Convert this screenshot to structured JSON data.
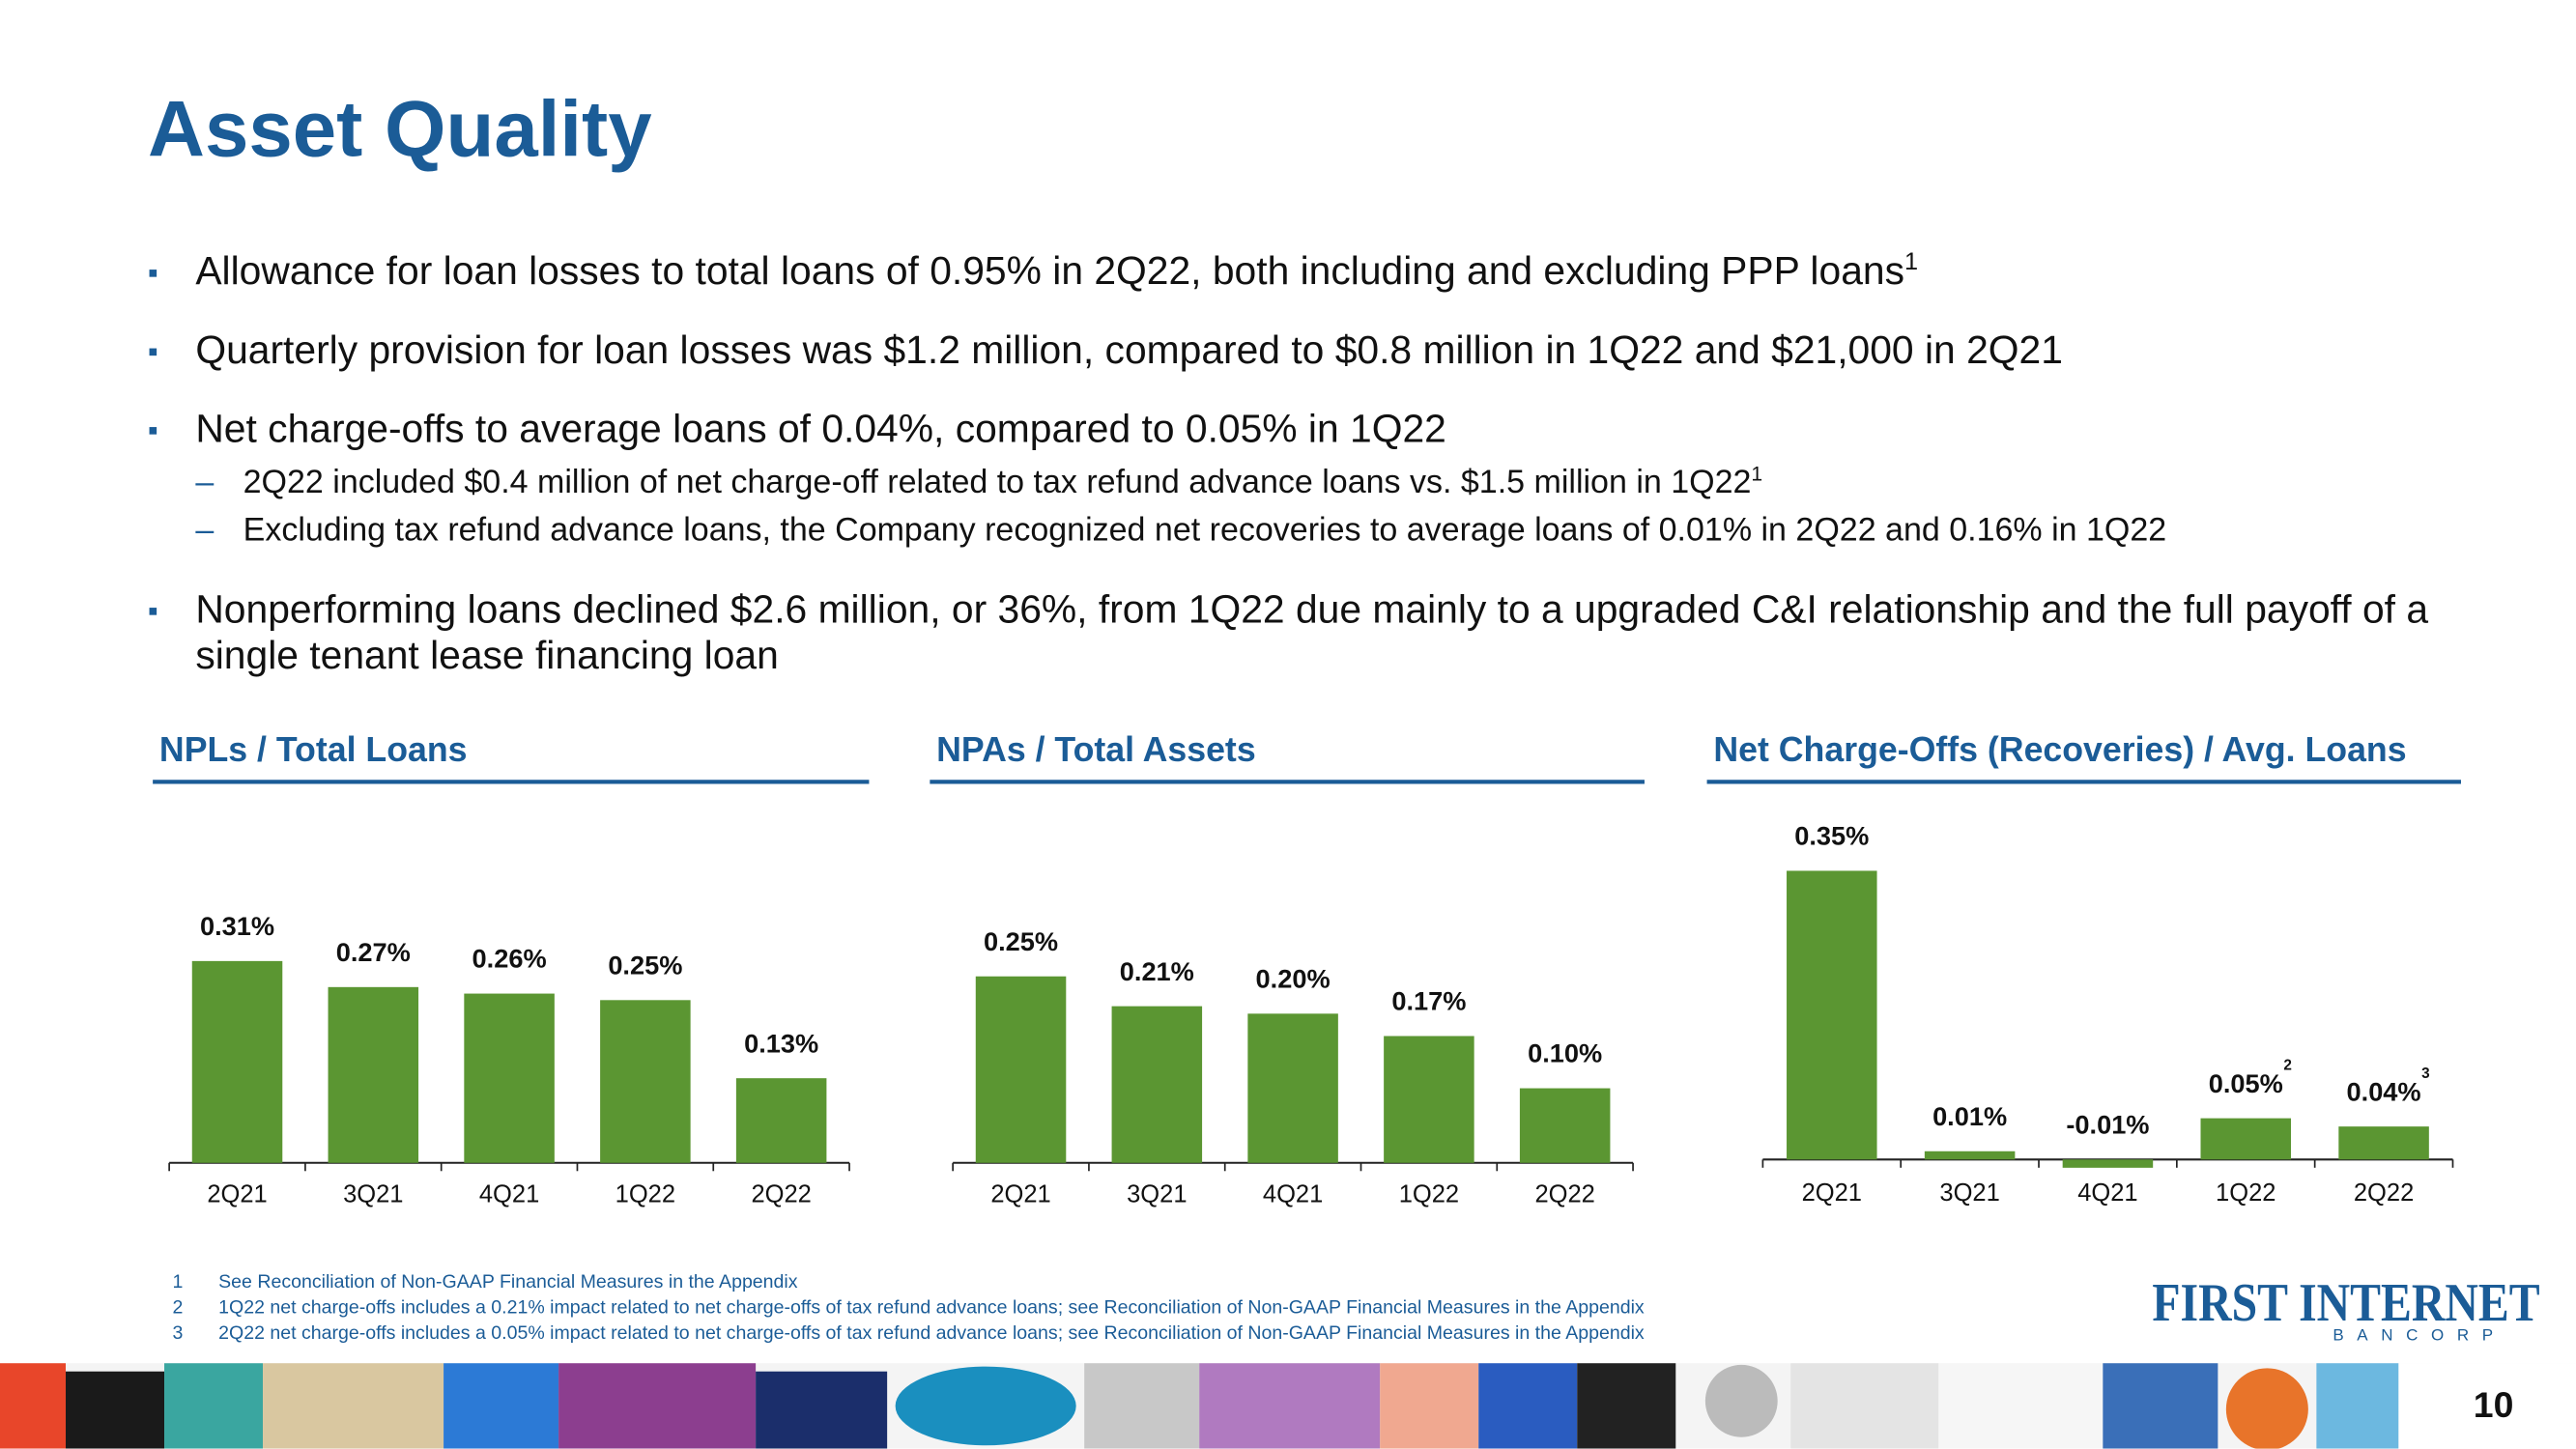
{
  "title": "Asset Quality",
  "bullets": [
    {
      "text": "Allowance for loan losses to total loans of 0.95% in 2Q22, both including and excluding PPP loans",
      "note": "1"
    },
    {
      "text": "Quarterly provision for loan losses was $1.2 million, compared to $0.8 million in 1Q22 and $21,000 in 2Q21"
    },
    {
      "text": "Net charge-offs to average loans of 0.04%, compared to 0.05% in 1Q22",
      "sub": [
        {
          "text": "2Q22 included $0.4 million of net charge-off related to tax refund advance loans vs. $1.5 million in 1Q22",
          "note": "1"
        },
        {
          "text": "Excluding tax refund advance loans, the Company recognized net recoveries to average loans of 0.01% in 2Q22 and 0.16% in 1Q22"
        }
      ]
    },
    {
      "text": "Nonperforming loans declined $2.6 million, or 36%, from 1Q22 due mainly to a upgraded C&I relationship and the full payoff of a single tenant lease financing loan"
    }
  ],
  "chart_data": [
    {
      "type": "bar",
      "title": "NPLs / Total Loans",
      "categories": [
        "2Q21",
        "3Q21",
        "4Q21",
        "1Q22",
        "2Q22"
      ],
      "values": [
        0.31,
        0.27,
        0.26,
        0.25,
        0.13
      ],
      "value_labels": [
        "0.31%",
        "0.27%",
        "0.26%",
        "0.25%",
        "0.13%"
      ],
      "color": "#5b9632",
      "ylim": [
        0,
        0.55
      ]
    },
    {
      "type": "bar",
      "title": "NPAs / Total Assets",
      "categories": [
        "2Q21",
        "3Q21",
        "4Q21",
        "1Q22",
        "2Q22"
      ],
      "values": [
        0.25,
        0.21,
        0.2,
        0.17,
        0.1
      ],
      "value_labels": [
        "0.25%",
        "0.21%",
        "0.20%",
        "0.17%",
        "0.10%"
      ],
      "color": "#5b9632",
      "ylim": [
        0,
        0.48
      ]
    },
    {
      "type": "bar",
      "title": "Net Charge-Offs (Recoveries) / Avg. Loans",
      "categories": [
        "2Q21",
        "3Q21",
        "4Q21",
        "1Q22",
        "2Q22"
      ],
      "values": [
        0.35,
        0.01,
        -0.01,
        0.05,
        0.04
      ],
      "value_labels": [
        "0.35%",
        "0.01%",
        "-0.01%",
        "0.05%",
        "0.04%"
      ],
      "value_notes": [
        null,
        null,
        null,
        "2",
        "3"
      ],
      "color": "#5b9632",
      "ylim": [
        -0.02,
        0.43
      ]
    }
  ],
  "footnotes": [
    {
      "number": "1",
      "text": "See Reconciliation of Non-GAAP Financial Measures in the Appendix"
    },
    {
      "number": "2",
      "text": "1Q22 net charge-offs includes a 0.21% impact related to net charge-offs of tax refund advance loans; see Reconciliation of Non-GAAP Financial Measures in the Appendix"
    },
    {
      "number": "3",
      "text": "2Q22 net charge-offs includes a 0.05% impact related to net charge-offs of tax refund advance loans; see Reconciliation of Non-GAAP Financial Measures in the Appendix"
    }
  ],
  "logo": {
    "name": "FIRST INTERNET",
    "sub": "BANCORP"
  },
  "page_number": "10"
}
